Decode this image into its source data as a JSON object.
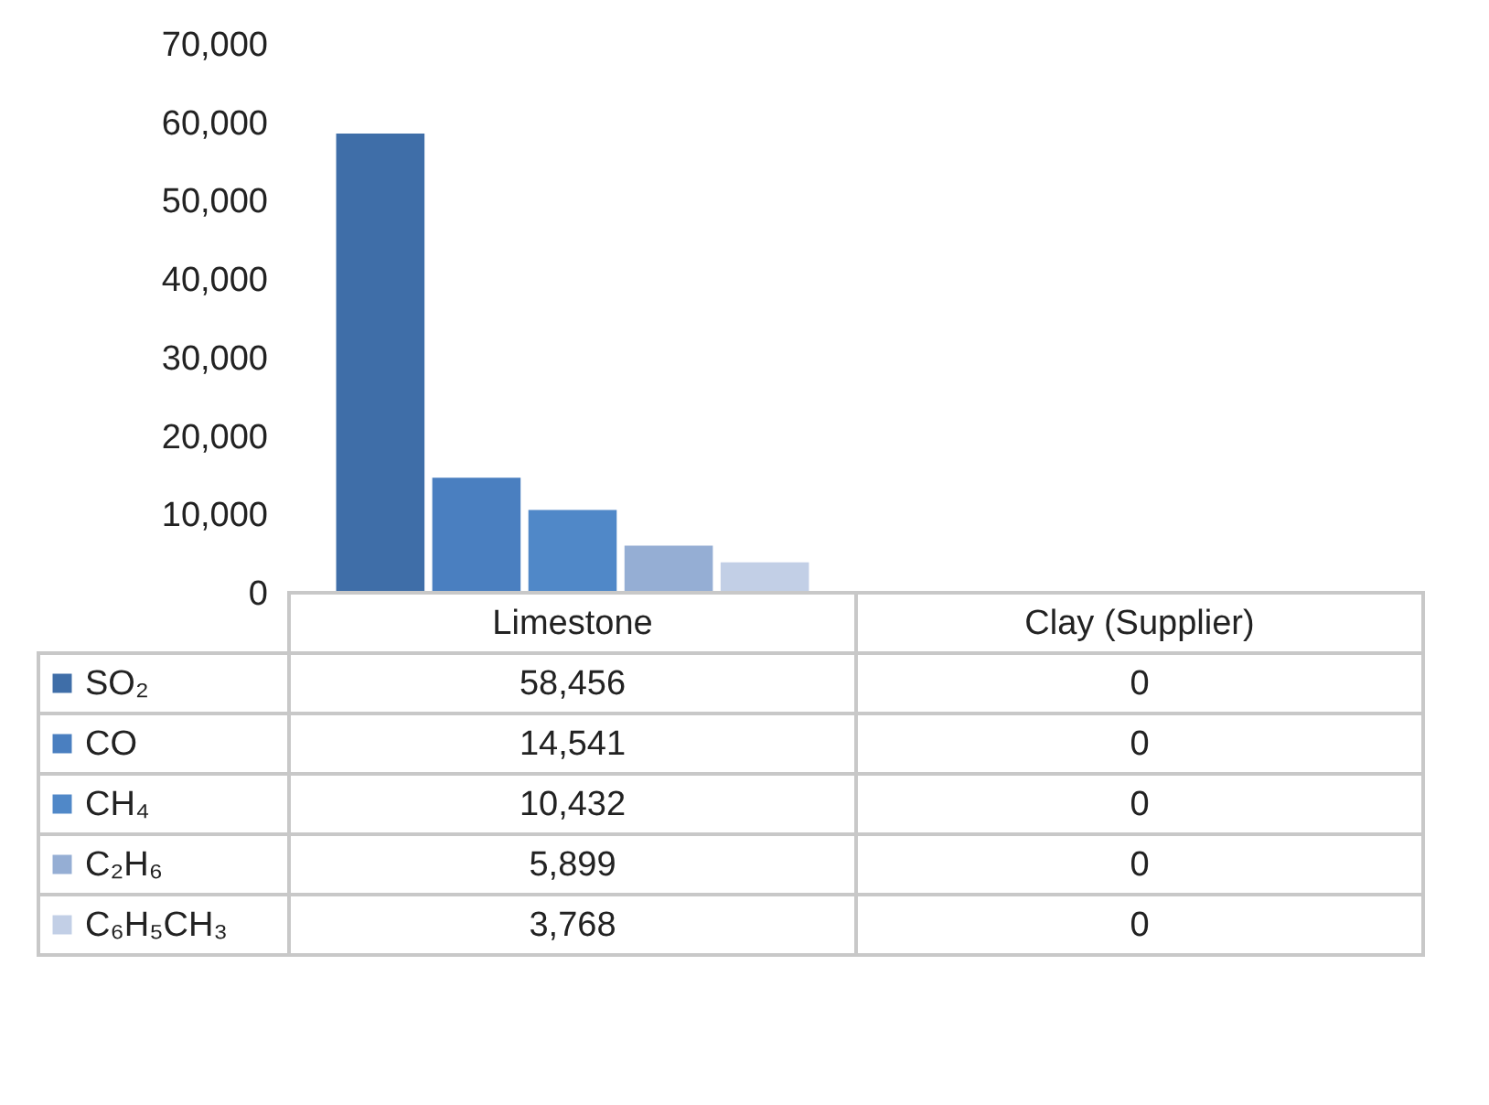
{
  "chart_data": {
    "type": "bar",
    "categories": [
      "Limestone",
      "Clay (Supplier)"
    ],
    "series": [
      {
        "name": "SO₂",
        "color": "#3f6ea8",
        "values": [
          58456,
          0
        ],
        "value_labels": [
          "58,456",
          "0"
        ]
      },
      {
        "name": "CO",
        "color": "#4a7fc0",
        "values": [
          14541,
          0
        ],
        "value_labels": [
          "14,541",
          "0"
        ]
      },
      {
        "name": "CH₄",
        "color": "#5088c8",
        "values": [
          10432,
          0
        ],
        "value_labels": [
          "10,432",
          "0"
        ]
      },
      {
        "name": "C₂H₆",
        "color": "#95aed4",
        "values": [
          5899,
          0
        ],
        "value_labels": [
          "5,899",
          "0"
        ]
      },
      {
        "name": "C₆H₅CH₃",
        "color": "#c2cfe6",
        "values": [
          3768,
          0
        ],
        "value_labels": [
          "3,768",
          "0"
        ]
      }
    ],
    "ylim": [
      0,
      70000
    ],
    "yticks": [
      0,
      {
        "value": 10000,
        "label": "10,000"
      },
      {
        "value": 20000,
        "label": "20,000"
      },
      {
        "value": 30000,
        "label": "30,000"
      },
      {
        "value": 40000,
        "label": "40,000"
      },
      {
        "value": 50000,
        "label": "50,000"
      },
      {
        "value": 60000,
        "label": "60,000"
      },
      {
        "value": 70000,
        "label": "70,000"
      }
    ],
    "legend": "bottom left"
  }
}
